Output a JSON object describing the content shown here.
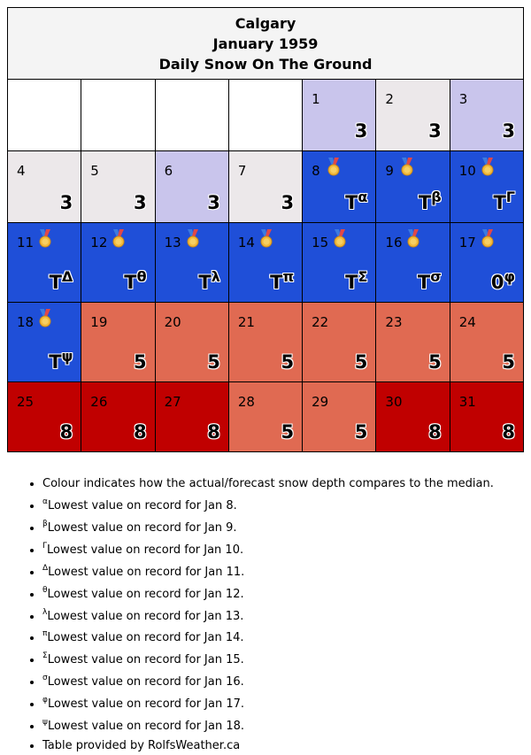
{
  "header": {
    "city": "Calgary",
    "month": "January 1959",
    "subtitle": "Daily Snow On The Ground"
  },
  "colors": {
    "much_above": "#c00000",
    "above": "#e06a52",
    "near_light": "#ece8ea",
    "near_violet": "#c9c5ec",
    "record_low": "#1f4fd8",
    "empty": "#ffffff"
  },
  "icons": {
    "record": "medal-icon"
  },
  "weeks": [
    [
      {
        "empty": true
      },
      {
        "empty": true
      },
      {
        "empty": true
      },
      {
        "empty": true
      },
      {
        "day": "1",
        "value": "3",
        "sup": "",
        "color": "near_violet",
        "medal": false
      },
      {
        "day": "2",
        "value": "3",
        "sup": "",
        "color": "near_light",
        "medal": false
      },
      {
        "day": "3",
        "value": "3",
        "sup": "",
        "color": "near_violet",
        "medal": false
      }
    ],
    [
      {
        "day": "4",
        "value": "3",
        "sup": "",
        "color": "near_light",
        "medal": false
      },
      {
        "day": "5",
        "value": "3",
        "sup": "",
        "color": "near_light",
        "medal": false
      },
      {
        "day": "6",
        "value": "3",
        "sup": "",
        "color": "near_violet",
        "medal": false
      },
      {
        "day": "7",
        "value": "3",
        "sup": "",
        "color": "near_light",
        "medal": false
      },
      {
        "day": "8",
        "value": "T",
        "sup": "α",
        "color": "record_low",
        "medal": true
      },
      {
        "day": "9",
        "value": "T",
        "sup": "β",
        "color": "record_low",
        "medal": true
      },
      {
        "day": "10",
        "value": "T",
        "sup": "Γ",
        "color": "record_low",
        "medal": true
      }
    ],
    [
      {
        "day": "11",
        "value": "T",
        "sup": "Δ",
        "color": "record_low",
        "medal": true
      },
      {
        "day": "12",
        "value": "T",
        "sup": "θ",
        "color": "record_low",
        "medal": true
      },
      {
        "day": "13",
        "value": "T",
        "sup": "λ",
        "color": "record_low",
        "medal": true
      },
      {
        "day": "14",
        "value": "T",
        "sup": "π",
        "color": "record_low",
        "medal": true
      },
      {
        "day": "15",
        "value": "T",
        "sup": "Σ",
        "color": "record_low",
        "medal": true
      },
      {
        "day": "16",
        "value": "T",
        "sup": "σ",
        "color": "record_low",
        "medal": true
      },
      {
        "day": "17",
        "value": "0",
        "sup": "φ",
        "color": "record_low",
        "medal": true
      }
    ],
    [
      {
        "day": "18",
        "value": "T",
        "sup": "ψ",
        "color": "record_low",
        "medal": true
      },
      {
        "day": "19",
        "value": "5",
        "sup": "",
        "color": "above",
        "medal": false
      },
      {
        "day": "20",
        "value": "5",
        "sup": "",
        "color": "above",
        "medal": false
      },
      {
        "day": "21",
        "value": "5",
        "sup": "",
        "color": "above",
        "medal": false
      },
      {
        "day": "22",
        "value": "5",
        "sup": "",
        "color": "above",
        "medal": false
      },
      {
        "day": "23",
        "value": "5",
        "sup": "",
        "color": "above",
        "medal": false
      },
      {
        "day": "24",
        "value": "5",
        "sup": "",
        "color": "above",
        "medal": false
      }
    ],
    [
      {
        "day": "25",
        "value": "8",
        "sup": "",
        "color": "much_above",
        "medal": false
      },
      {
        "day": "26",
        "value": "8",
        "sup": "",
        "color": "much_above",
        "medal": false
      },
      {
        "day": "27",
        "value": "8",
        "sup": "",
        "color": "much_above",
        "medal": false
      },
      {
        "day": "28",
        "value": "5",
        "sup": "",
        "color": "above",
        "medal": false
      },
      {
        "day": "29",
        "value": "5",
        "sup": "",
        "color": "above",
        "medal": false
      },
      {
        "day": "30",
        "value": "8",
        "sup": "",
        "color": "much_above",
        "medal": false
      },
      {
        "day": "31",
        "value": "8",
        "sup": "",
        "color": "much_above",
        "medal": false
      }
    ]
  ],
  "notes": [
    {
      "sup": "",
      "text": "Colour indicates how the actual/forecast snow depth compares to the median."
    },
    {
      "sup": "α",
      "text": "Lowest value on record for Jan 8."
    },
    {
      "sup": "β",
      "text": "Lowest value on record for Jan 9."
    },
    {
      "sup": "Γ",
      "text": "Lowest value on record for Jan 10."
    },
    {
      "sup": "Δ",
      "text": "Lowest value on record for Jan 11."
    },
    {
      "sup": "θ",
      "text": "Lowest value on record for Jan 12."
    },
    {
      "sup": "λ",
      "text": "Lowest value on record for Jan 13."
    },
    {
      "sup": "π",
      "text": "Lowest value on record for Jan 14."
    },
    {
      "sup": "Σ",
      "text": "Lowest value on record for Jan 15."
    },
    {
      "sup": "σ",
      "text": "Lowest value on record for Jan 16."
    },
    {
      "sup": "φ",
      "text": "Lowest value on record for Jan 17."
    },
    {
      "sup": "ψ",
      "text": "Lowest value on record for Jan 18."
    },
    {
      "sup": "",
      "text": "Table provided by RolfsWeather.ca"
    }
  ]
}
